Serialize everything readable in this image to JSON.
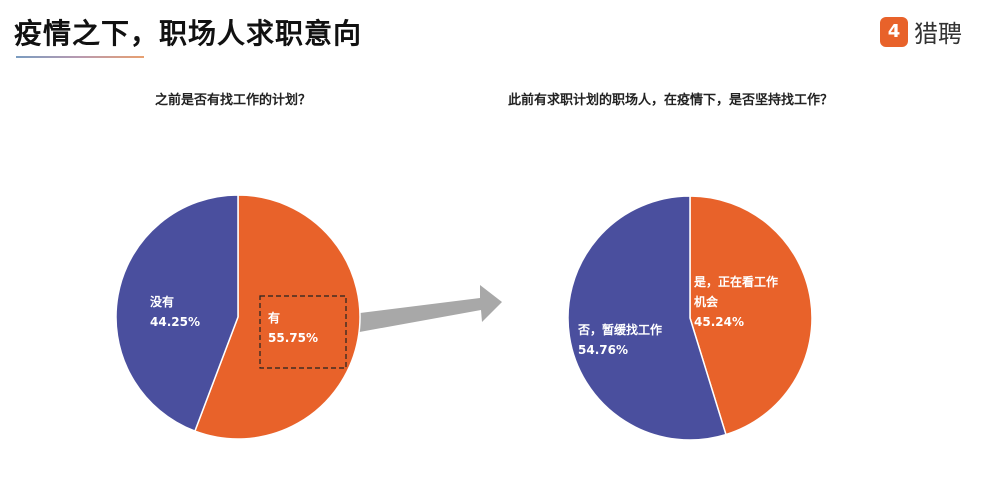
{
  "header": {
    "title": "疫情之下，职场人求职意向",
    "logo_text": "猎聘",
    "logo_mark": "4"
  },
  "colors": {
    "orange": "#e8622a",
    "blue": "#4a4f9e",
    "arrow": "#a8a8a8"
  },
  "chart_data": [
    {
      "type": "pie",
      "title": "之前是否有找工作的计划？",
      "slices": [
        {
          "label": "有",
          "value": 55.75,
          "display": "55.75%",
          "color": "#e8622a"
        },
        {
          "label": "没有",
          "value": 44.25,
          "display": "44.25%",
          "color": "#4a4f9e"
        }
      ],
      "start": "top",
      "direction": "clockwise",
      "highlight": "有"
    },
    {
      "type": "pie",
      "title": "此前有求职计划的职场人，在疫情下，是否坚持找工作？",
      "slices": [
        {
          "label": "是，正在看工作机会",
          "label_lines": [
            "是，正在看工作",
            "机会"
          ],
          "value": 45.24,
          "display": "45.24%",
          "color": "#e8622a"
        },
        {
          "label": "否，暂缓找工作",
          "label_lines": [
            "否，暂缓找工作"
          ],
          "value": 54.76,
          "display": "54.76%",
          "color": "#4a4f9e"
        }
      ],
      "start": "top",
      "direction": "clockwise"
    }
  ]
}
